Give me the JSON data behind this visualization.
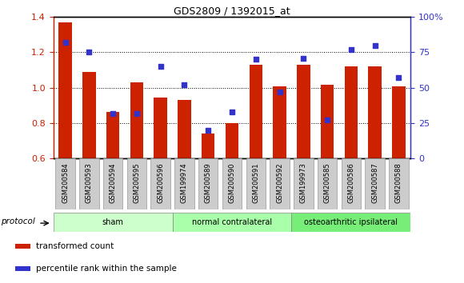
{
  "title": "GDS2809 / 1392015_at",
  "samples": [
    "GSM200584",
    "GSM200593",
    "GSM200594",
    "GSM200595",
    "GSM200596",
    "GSM199974",
    "GSM200589",
    "GSM200590",
    "GSM200591",
    "GSM200592",
    "GSM199973",
    "GSM200585",
    "GSM200586",
    "GSM200587",
    "GSM200588"
  ],
  "bar_values": [
    1.37,
    1.09,
    0.865,
    1.03,
    0.945,
    0.93,
    0.74,
    0.8,
    1.13,
    1.01,
    1.13,
    1.015,
    1.12,
    1.12,
    1.01
  ],
  "blue_values": [
    82,
    75,
    32,
    32,
    65,
    52,
    20,
    33,
    70,
    47,
    71,
    27,
    77,
    80,
    57
  ],
  "ylim_left": [
    0.6,
    1.4
  ],
  "ylim_right": [
    0,
    100
  ],
  "yticks_left": [
    0.6,
    0.8,
    1.0,
    1.2,
    1.4
  ],
  "yticks_right": [
    0,
    25,
    50,
    75,
    100
  ],
  "bar_color": "#CC2200",
  "dot_color": "#3333CC",
  "plot_bg": "#FFFFFF",
  "fig_bg": "#FFFFFF",
  "protocol_groups": [
    {
      "label": "sham",
      "start": 0,
      "end": 5,
      "color": "#CCFFCC"
    },
    {
      "label": "normal contralateral",
      "start": 5,
      "end": 10,
      "color": "#AAFFAA"
    },
    {
      "label": "osteoarthritic ipsilateral",
      "start": 10,
      "end": 15,
      "color": "#77EE77"
    }
  ],
  "legend_items": [
    {
      "label": "transformed count",
      "color": "#CC2200"
    },
    {
      "label": "percentile rank within the sample",
      "color": "#3333CC"
    }
  ],
  "grid_color": "#000000",
  "sample_box_color": "#CCCCCC",
  "sample_box_edge": "#999999"
}
